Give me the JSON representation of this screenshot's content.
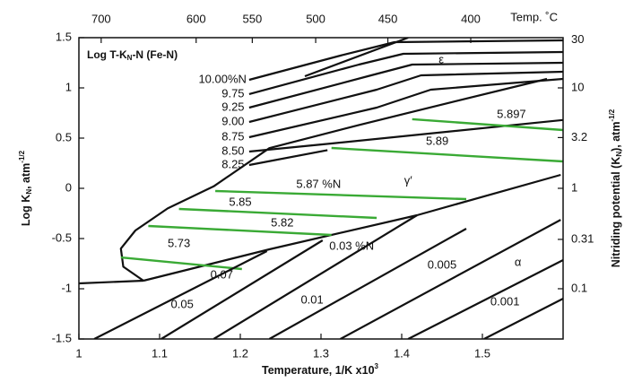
{
  "chart_data": {
    "type": "line",
    "title": {
      "text": "Log T-K",
      "sub": "N",
      "tail": "-N (Fe-N)"
    },
    "x_label": {
      "text": "Temperature, 1/K x10",
      "sup": "3"
    },
    "y_label": {
      "text": "Log K",
      "sub": "N",
      "tail": ", atm",
      "sup": "-1/2"
    },
    "y2_label": {
      "text": "Nitriding potential (K",
      "sub": "N",
      "tail": "), atm",
      "sup": "-1/2"
    },
    "xlim": [
      1.0,
      1.6
    ],
    "xticks": [
      1,
      1.1,
      1.2,
      1.3,
      1.4,
      1.5
    ],
    "ylim": [
      -1.5,
      1.5
    ],
    "yticks": [
      1.5,
      1,
      0.5,
      0,
      -0.5,
      -1,
      -1.5
    ],
    "y2lim": [
      0.0316,
      31.62
    ],
    "y2ticks": [
      30,
      10,
      3.2,
      1,
      0.31,
      0.1
    ],
    "y2_log": true,
    "top_axis": {
      "label": "Temp. ˚C",
      "ticks": [
        700,
        600,
        550,
        500,
        450,
        400
      ]
    },
    "series": [
      {
        "color": "#111111",
        "x": [
          1.0,
          1.08
        ],
        "values": [
          -0.946,
          -0.92
        ]
      },
      {
        "color": "#111111",
        "x": [
          1.08,
          1.055,
          1.052,
          1.07,
          1.11,
          1.167,
          1.236,
          1.347,
          1.458,
          1.58
        ],
        "values": [
          -0.92,
          -0.78,
          -0.6,
          -0.42,
          -0.2,
          0.02,
          0.4,
          0.63,
          0.85,
          1.089
        ]
      },
      {
        "color": "#111111",
        "x": [
          1.08,
          1.236,
          1.419
        ],
        "values": [
          -0.92,
          -0.607,
          -0.268
        ]
      },
      {
        "color": "#111111",
        "x": [
          1.419,
          1.597
        ],
        "values": [
          -0.268,
          0.134
        ]
      },
      {
        "color": "#111111",
        "x": [
          1.211,
          1.324,
          1.391,
          1.6
        ],
        "values": [
          1.08,
          1.321,
          1.455,
          1.473
        ]
      },
      {
        "color": "#111111",
        "x": [
          1.211,
          1.347,
          1.402,
          1.6
        ],
        "values": [
          0.938,
          1.232,
          1.339,
          1.357
        ]
      },
      {
        "color": "#111111",
        "x": [
          1.211,
          1.358,
          1.413,
          1.6
        ],
        "values": [
          0.804,
          1.116,
          1.232,
          1.25
        ]
      },
      {
        "color": "#111111",
        "x": [
          1.211,
          1.369,
          1.424,
          1.6
        ],
        "values": [
          0.661,
          0.982,
          1.125,
          1.161
        ]
      },
      {
        "color": "#111111",
        "x": [
          1.211,
          1.369,
          1.436,
          1.6
        ],
        "values": [
          0.509,
          0.804,
          0.982,
          1.089
        ]
      },
      {
        "color": "#111111",
        "x": [
          1.211,
          1.313,
          1.6
        ],
        "values": [
          0.366,
          0.446,
          0.68
        ]
      },
      {
        "color": "#111111",
        "x": [
          1.211,
          1.308
        ],
        "values": [
          0.232,
          0.38
        ]
      },
      {
        "color": "#111111",
        "x": [
          1.28,
          1.408
        ],
        "values": [
          1.116,
          1.5
        ]
      },
      {
        "color": "#3aaa35",
        "x": [
          1.413,
          1.6
        ],
        "values": [
          0.688,
          0.58
        ]
      },
      {
        "color": "#3aaa35",
        "x": [
          1.313,
          1.6
        ],
        "values": [
          0.402,
          0.268
        ]
      },
      {
        "color": "#3aaa35",
        "x": [
          1.169,
          1.48
        ],
        "values": [
          -0.027,
          -0.107
        ]
      },
      {
        "color": "#3aaa35",
        "x": [
          1.124,
          1.369
        ],
        "values": [
          -0.205,
          -0.295
        ]
      },
      {
        "color": "#3aaa35",
        "x": [
          1.086,
          1.313
        ],
        "values": [
          -0.375,
          -0.464
        ]
      },
      {
        "color": "#3aaa35",
        "x": [
          1.052,
          1.202
        ],
        "values": [
          -0.688,
          -0.804
        ]
      },
      {
        "color": "#111111",
        "x": [
          1.019,
          1.233
        ],
        "values": [
          -1.5,
          -0.625
        ]
      },
      {
        "color": "#111111",
        "x": [
          1.102,
          1.302
        ],
        "values": [
          -1.5,
          -0.518
        ]
      },
      {
        "color": "#111111",
        "x": [
          1.167,
          1.419
        ],
        "values": [
          -1.5,
          -0.268
        ]
      },
      {
        "color": "#111111",
        "x": [
          1.236,
          1.48
        ],
        "values": [
          -1.5,
          -0.402
        ]
      },
      {
        "color": "#111111",
        "x": [
          1.324,
          1.597
        ],
        "values": [
          -1.5,
          -0.313
        ]
      },
      {
        "color": "#111111",
        "x": [
          1.408,
          1.6
        ],
        "values": [
          -1.5,
          -0.714
        ]
      },
      {
        "color": "#111111",
        "x": [
          1.502,
          1.6
        ],
        "values": [
          -1.5,
          -1.098
        ]
      }
    ],
    "annotations": [
      {
        "text": "10.00%N",
        "x": 1.178,
        "y": 1.08
      },
      {
        "text": "9.75",
        "x": 1.191,
        "y": 0.938
      },
      {
        "text": "9.25",
        "x": 1.191,
        "y": 0.804
      },
      {
        "text": "9.00",
        "x": 1.191,
        "y": 0.661
      },
      {
        "text": "8.75",
        "x": 1.191,
        "y": 0.509
      },
      {
        "text": "8.50",
        "x": 1.191,
        "y": 0.366
      },
      {
        "text": "8.25",
        "x": 1.191,
        "y": 0.232
      },
      {
        "text": "ε",
        "x": 1.449,
        "y": 1.277
      },
      {
        "text": "5.897",
        "x": 1.536,
        "y": 0.732
      },
      {
        "text": "5.89",
        "x": 1.444,
        "y": 0.464
      },
      {
        "text": "5.87 %N",
        "x": 1.297,
        "y": 0.036
      },
      {
        "text": "γ′",
        "x": 1.408,
        "y": 0.071
      },
      {
        "text": "5.85",
        "x": 1.2,
        "y": -0.143
      },
      {
        "text": "5.82",
        "x": 1.252,
        "y": -0.348
      },
      {
        "text": "5.73",
        "x": 1.124,
        "y": -0.554
      },
      {
        "text": "0.03 %N",
        "x": 1.338,
        "y": -0.58
      },
      {
        "text": "0.07",
        "x": 1.177,
        "y": -0.866
      },
      {
        "text": "0.05",
        "x": 1.128,
        "y": -1.161
      },
      {
        "text": "0.01",
        "x": 1.289,
        "y": -1.116
      },
      {
        "text": "0.005",
        "x": 1.45,
        "y": -0.768
      },
      {
        "text": "α",
        "x": 1.544,
        "y": -0.741
      },
      {
        "text": "0.001",
        "x": 1.528,
        "y": -1.134
      }
    ]
  }
}
